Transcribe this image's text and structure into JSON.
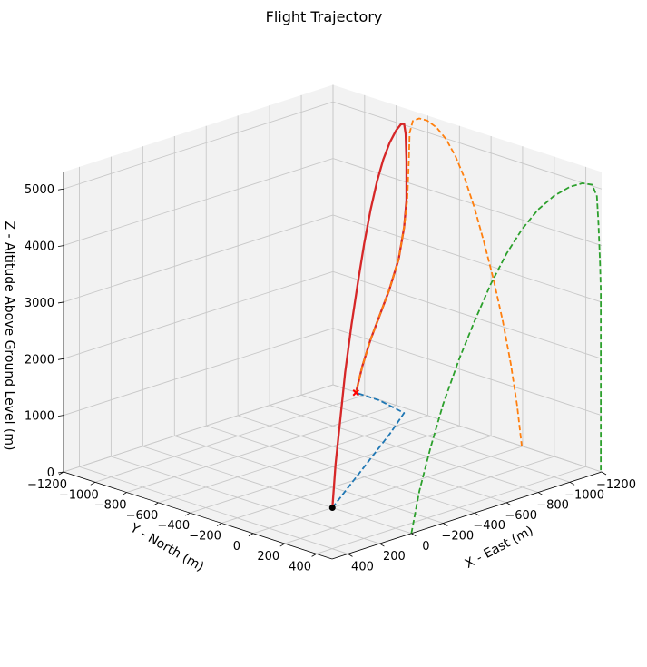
{
  "chart_data": {
    "type": "line3d",
    "title": "Flight Trajectory",
    "xlabel": "X - East (m)",
    "ylabel": "Y - North (m)",
    "zlabel": "Z - Altitude Above Ground Level (m)",
    "xlim": [
      -1200,
      500
    ],
    "ylim": [
      -1200,
      500
    ],
    "zlim": [
      0,
      5300
    ],
    "x_ticks": [
      -1200,
      -1000,
      -800,
      -600,
      -400,
      -200,
      0,
      200,
      400
    ],
    "y_ticks": [
      -1200,
      -1000,
      -800,
      -600,
      -400,
      -200,
      0,
      200,
      400
    ],
    "z_ticks": [
      0,
      1000,
      2000,
      3000,
      4000,
      5000
    ],
    "x_tick_labels": [
      "−1200",
      "−1000",
      "−800",
      "−600",
      "−400",
      "−200",
      "0",
      "200",
      "400"
    ],
    "y_tick_labels": [
      "−1200",
      "−1000",
      "−800",
      "−600",
      "−400",
      "−200",
      "0",
      "200",
      "400"
    ],
    "z_tick_labels": [
      "0",
      "1000",
      "2000",
      "3000",
      "4000",
      "5000"
    ],
    "grid": true,
    "colors": {
      "trajectory": "#d62728",
      "projection_ground": "#1f77b4",
      "projection_yz": "#ff7f0e",
      "projection_xz": "#2ca02c",
      "launch_marker": "#000000",
      "impact_marker": "#ff0000"
    },
    "series": [
      {
        "style": "solid",
        "x": [
          0,
          -50,
          -120,
          -200,
          -300,
          -400,
          -500,
          -600,
          -700,
          -800,
          -900,
          -1000,
          -1080,
          -1140,
          -1170,
          -1180,
          -1190,
          -1195,
          -1195,
          -1195,
          -1195,
          -1195,
          -1195,
          -1195
        ],
        "y": [
          0,
          -30,
          -70,
          -120,
          -180,
          -240,
          -300,
          -360,
          -420,
          -480,
          -540,
          -600,
          -650,
          -690,
          -710,
          -715,
          -725,
          -745,
          -780,
          -840,
          -900,
          -960,
          -1010,
          -1050
        ],
        "z": [
          0,
          700,
          1400,
          2100,
          2800,
          3400,
          3950,
          4400,
          4750,
          5000,
          5150,
          5220,
          5210,
          5130,
          4900,
          4400,
          3700,
          3200,
          2600,
          2000,
          1500,
          1000,
          500,
          0
        ]
      },
      {
        "style": "dashed",
        "x": [
          -1195,
          -1195,
          -1195,
          -1195,
          -1195,
          -1195,
          -1195,
          -1195,
          -1195,
          -1195,
          -1195,
          -1195,
          -1195,
          -1195,
          -1195,
          -1195,
          -1195,
          -1195,
          -1195,
          -1195,
          -1195,
          -1195,
          -1195,
          -1195
        ],
        "y": [
          0,
          -30,
          -70,
          -120,
          -180,
          -240,
          -300,
          -360,
          -420,
          -480,
          -540,
          -600,
          -650,
          -690,
          -710,
          -715,
          -725,
          -745,
          -780,
          -840,
          -900,
          -960,
          -1010,
          -1050
        ],
        "z": [
          0,
          700,
          1400,
          2100,
          2800,
          3400,
          3950,
          4400,
          4750,
          5000,
          5150,
          5220,
          5210,
          5130,
          4900,
          4400,
          3700,
          3200,
          2600,
          2000,
          1500,
          1000,
          500,
          0
        ]
      },
      {
        "style": "dashed",
        "x": [
          0,
          -50,
          -120,
          -200,
          -300,
          -400,
          -500,
          -600,
          -700,
          -800,
          -900,
          -1000,
          -1080,
          -1140,
          -1170,
          -1180,
          -1190,
          -1195,
          -1195,
          -1195,
          -1195,
          -1195,
          -1195,
          -1195
        ],
        "y": [
          500,
          500,
          500,
          500,
          500,
          500,
          500,
          500,
          500,
          500,
          500,
          500,
          500,
          500,
          500,
          500,
          500,
          500,
          500,
          500,
          500,
          500,
          500,
          500
        ],
        "z": [
          0,
          700,
          1400,
          2100,
          2800,
          3400,
          3950,
          4400,
          4750,
          5000,
          5150,
          5220,
          5210,
          5130,
          4900,
          4400,
          3700,
          3200,
          2600,
          2000,
          1500,
          1000,
          500,
          0
        ]
      },
      {
        "style": "dashed",
        "x": [
          0,
          -300,
          -600,
          -900,
          -1150,
          -1195,
          -1195
        ],
        "y": [
          0,
          -180,
          -360,
          -540,
          -700,
          -900,
          -1050
        ],
        "z": [
          0,
          0,
          0,
          0,
          0,
          0,
          0
        ]
      }
    ],
    "markers": [
      {
        "x": 0,
        "y": 0,
        "z": 0,
        "shape": "circle"
      },
      {
        "x": -1195,
        "y": -1050,
        "z": 0,
        "shape": "x"
      }
    ]
  }
}
